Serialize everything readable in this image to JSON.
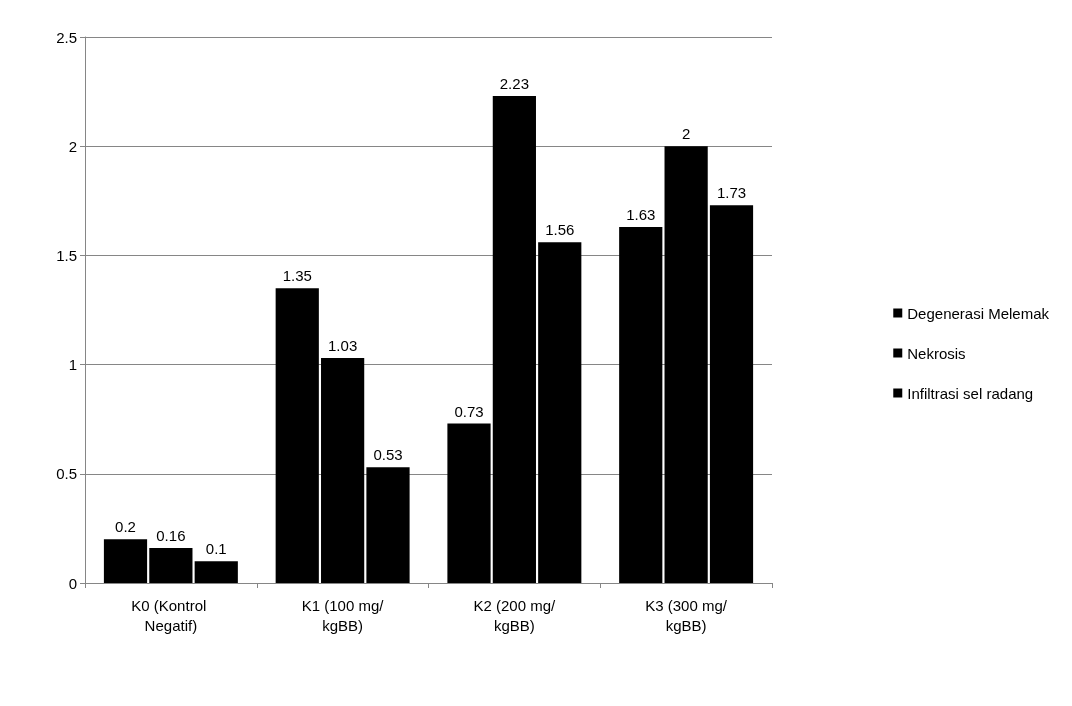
{
  "chart_data": {
    "type": "bar",
    "categories": [
      "K0 (Kontrol Negatif)",
      "K1 (100 mg/kgBB)",
      "K2 (200 mg/kgBB)",
      "K3 (300 mg/kgBB)"
    ],
    "series": [
      {
        "name": "Degenerasi Melemak",
        "color": "#000000",
        "values": [
          0.2,
          1.35,
          0.73,
          1.63
        ]
      },
      {
        "name": "Nekrosis",
        "color": "#000000",
        "values": [
          0.16,
          1.03,
          2.23,
          2
        ]
      },
      {
        "name": "Infiltrasi sel radang",
        "color": "#000000",
        "values": [
          0.1,
          0.53,
          1.56,
          1.73
        ]
      }
    ],
    "ylim": [
      0,
      2.5
    ],
    "yticks": [
      0,
      0.5,
      1,
      1.5,
      2,
      2.5
    ],
    "grid": "y",
    "legend": "right",
    "data_labels": true
  }
}
